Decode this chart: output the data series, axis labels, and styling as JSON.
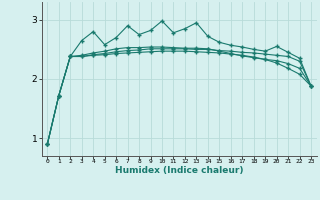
{
  "xlabel": "Humidex (Indice chaleur)",
  "background_color": "#d6f0ef",
  "grid_color": "#b8dbd9",
  "line_color": "#1a7a6e",
  "xlim": [
    -0.5,
    23.5
  ],
  "ylim": [
    0.7,
    3.3
  ],
  "yticks": [
    1,
    2,
    3
  ],
  "xticks": [
    0,
    1,
    2,
    3,
    4,
    5,
    6,
    7,
    8,
    9,
    10,
    11,
    12,
    13,
    14,
    15,
    16,
    17,
    18,
    19,
    20,
    21,
    22,
    23
  ],
  "series1_x": [
    0,
    1,
    2,
    3,
    4,
    5,
    6,
    7,
    8,
    9,
    10,
    11,
    12,
    13,
    14,
    15,
    16,
    17,
    18,
    19,
    20,
    21,
    22,
    23
  ],
  "series1_y": [
    0.9,
    1.72,
    2.38,
    2.38,
    2.4,
    2.41,
    2.43,
    2.44,
    2.45,
    2.46,
    2.47,
    2.47,
    2.47,
    2.46,
    2.45,
    2.44,
    2.42,
    2.4,
    2.37,
    2.33,
    2.27,
    2.18,
    2.08,
    1.88
  ],
  "series2_x": [
    0,
    1,
    2,
    3,
    4,
    5,
    6,
    7,
    8,
    9,
    10,
    11,
    12,
    13,
    14,
    15,
    16,
    17,
    18,
    19,
    20,
    21,
    22,
    23
  ],
  "series2_y": [
    0.9,
    1.72,
    2.38,
    2.65,
    2.8,
    2.58,
    2.7,
    2.9,
    2.75,
    2.82,
    2.98,
    2.78,
    2.85,
    2.95,
    2.72,
    2.62,
    2.57,
    2.54,
    2.5,
    2.47,
    2.55,
    2.45,
    2.35,
    1.88
  ],
  "series3_x": [
    0,
    1,
    2,
    3,
    4,
    5,
    6,
    7,
    8,
    9,
    10,
    11,
    12,
    13,
    14,
    15,
    16,
    17,
    18,
    19,
    20,
    21,
    22,
    23
  ],
  "series3_y": [
    0.9,
    1.72,
    2.38,
    2.38,
    2.41,
    2.43,
    2.46,
    2.48,
    2.49,
    2.51,
    2.51,
    2.51,
    2.51,
    2.5,
    2.5,
    2.48,
    2.47,
    2.45,
    2.44,
    2.42,
    2.4,
    2.38,
    2.3,
    1.88
  ],
  "series4_x": [
    0,
    1,
    2,
    3,
    4,
    5,
    6,
    7,
    8,
    9,
    10,
    11,
    12,
    13,
    14,
    15,
    16,
    17,
    18,
    19,
    20,
    21,
    22,
    23
  ],
  "series4_y": [
    0.9,
    1.72,
    2.38,
    2.4,
    2.44,
    2.47,
    2.51,
    2.53,
    2.53,
    2.54,
    2.54,
    2.53,
    2.52,
    2.52,
    2.51,
    2.47,
    2.43,
    2.39,
    2.36,
    2.33,
    2.31,
    2.26,
    2.18,
    1.88
  ]
}
